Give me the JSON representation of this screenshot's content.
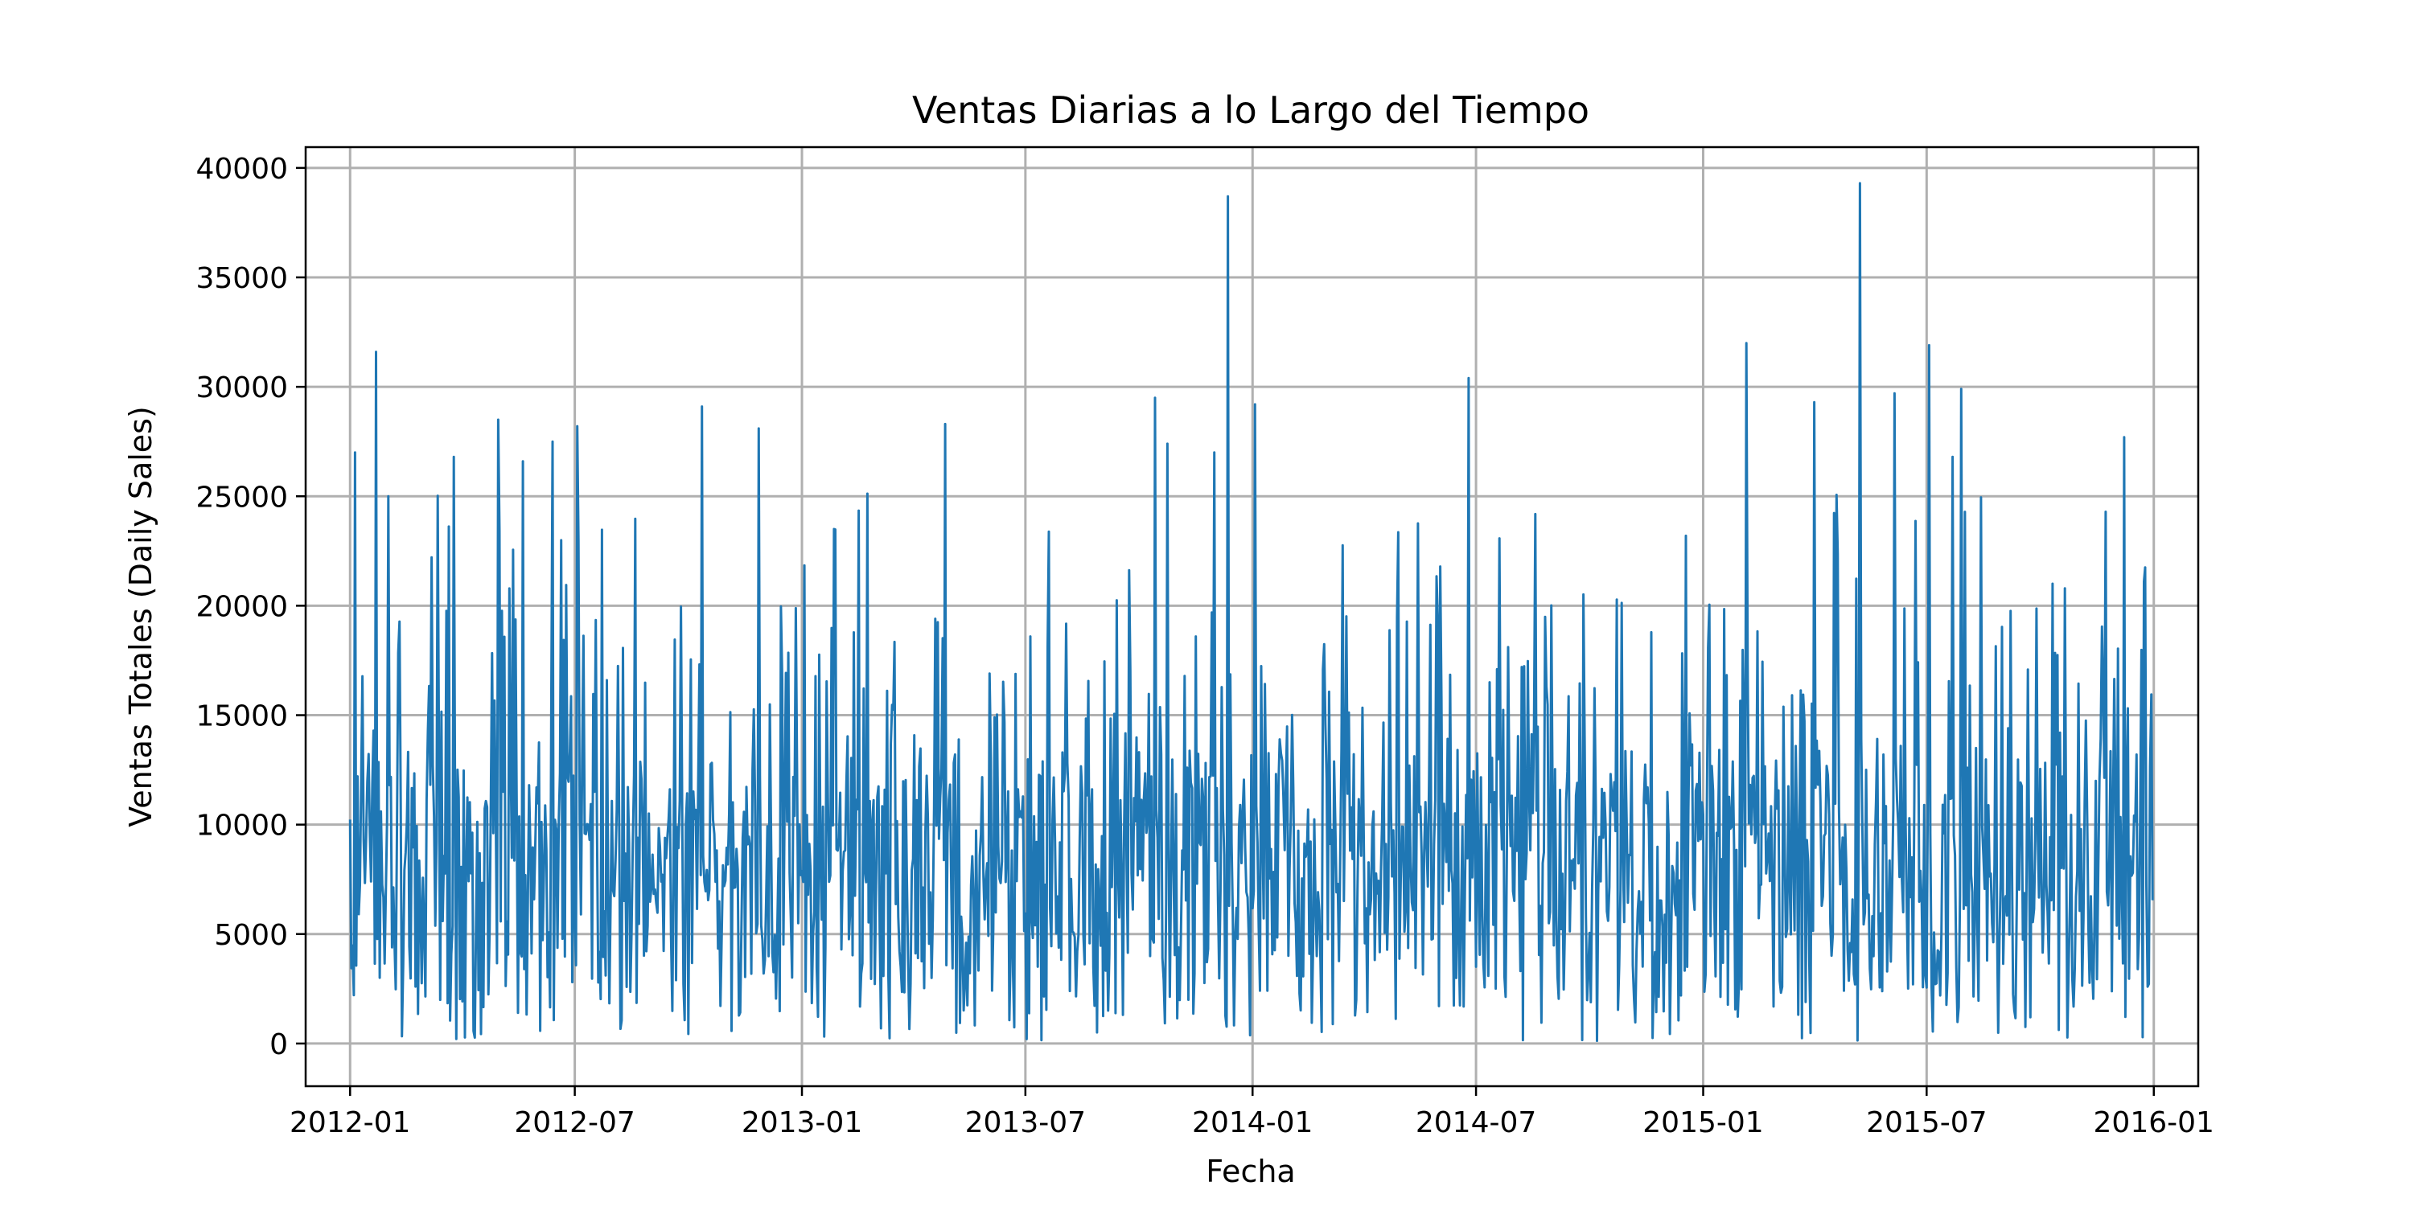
{
  "chart_data": {
    "type": "line",
    "title": "Ventas Diarias a lo Largo del Tiempo",
    "xlabel": "Fecha",
    "ylabel": "Ventas Totales (Daily Sales)",
    "x_ticks": [
      "2012-01",
      "2012-07",
      "2013-01",
      "2013-07",
      "2014-01",
      "2014-07",
      "2015-01",
      "2015-07",
      "2016-01"
    ],
    "y_ticks": [
      0,
      5000,
      10000,
      15000,
      20000,
      25000,
      30000,
      35000,
      40000
    ],
    "xlim": [
      "2011-11-26",
      "2016-02-06"
    ],
    "ylim": [
      -1950,
      40950
    ],
    "grid": true,
    "series_color": "#1f77b4",
    "date_range": [
      "2012-01-01",
      "2015-12-31"
    ],
    "peaks": [
      {
        "date": "2012-01-05",
        "value": 27000
      },
      {
        "date": "2012-01-22",
        "value": 31600
      },
      {
        "date": "2012-02-01",
        "value": 25000
      },
      {
        "date": "2012-03-25",
        "value": 26800
      },
      {
        "date": "2012-04-30",
        "value": 28500
      },
      {
        "date": "2012-05-20",
        "value": 26600
      },
      {
        "date": "2012-06-13",
        "value": 27500
      },
      {
        "date": "2012-07-03",
        "value": 28200
      },
      {
        "date": "2012-10-12",
        "value": 29100
      },
      {
        "date": "2012-11-27",
        "value": 28100
      },
      {
        "date": "2013-04-27",
        "value": 28300
      },
      {
        "date": "2013-10-14",
        "value": 29500
      },
      {
        "date": "2013-10-24",
        "value": 27400
      },
      {
        "date": "2013-12-01",
        "value": 27000
      },
      {
        "date": "2013-12-12",
        "value": 38700
      },
      {
        "date": "2014-01-03",
        "value": 29200
      },
      {
        "date": "2014-06-25",
        "value": 30400
      },
      {
        "date": "2015-02-05",
        "value": 32000
      },
      {
        "date": "2015-04-01",
        "value": 29300
      },
      {
        "date": "2015-05-08",
        "value": 39300
      },
      {
        "date": "2015-06-05",
        "value": 29700
      },
      {
        "date": "2015-07-03",
        "value": 31900
      },
      {
        "date": "2015-07-29",
        "value": 29900
      },
      {
        "date": "2015-07-22",
        "value": 26800
      },
      {
        "date": "2015-12-08",
        "value": 27700
      }
    ]
  }
}
